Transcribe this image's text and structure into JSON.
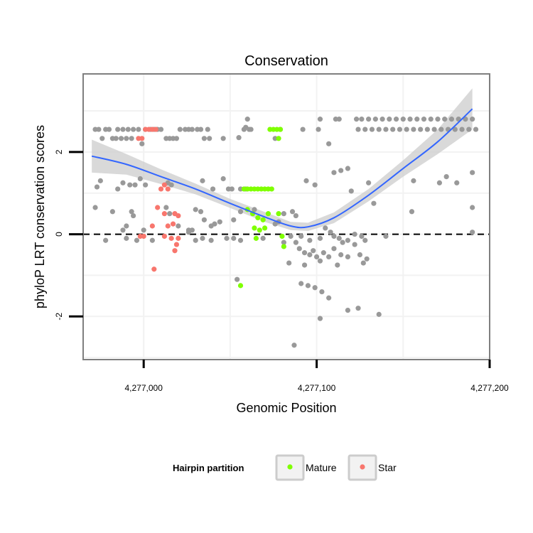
{
  "chart_data": {
    "type": "scatter",
    "title": "Conservation",
    "xlabel": "Genomic Position",
    "ylabel": "phyloP LRT conservation scores",
    "xlim": [
      4276965,
      4277200
    ],
    "ylim": [
      -3.05,
      3.9
    ],
    "x_ticks": [
      4277000,
      4277100,
      4277200
    ],
    "x_tick_labels": [
      "4,277,000",
      "4,277,100",
      "4,277,200"
    ],
    "y_ticks": [
      -2,
      0,
      2
    ],
    "y_tick_labels": [
      "-2",
      "0",
      "2"
    ],
    "grid": true,
    "reference_line": {
      "y": 0,
      "style": "dashed"
    },
    "legend": {
      "title": "Hairpin partition",
      "position": "bottom",
      "entries": [
        {
          "label": "Mature",
          "color": "#7FFF00"
        },
        {
          "label": "Star",
          "color": "#F8766D"
        }
      ]
    },
    "colors": {
      "other": "#999999",
      "mature": "#7FFF00",
      "star": "#F8766D",
      "smooth": "#3366FF",
      "band": "#CCCCCC"
    },
    "series": [
      {
        "group": "other",
        "points": [
          [
            4276978,
            2.55
          ],
          [
            4276980,
            2.55
          ],
          [
            4276982,
            2.33
          ],
          [
            4276984,
            2.33
          ],
          [
            4276985,
            2.55
          ],
          [
            4276987,
            2.33
          ],
          [
            4276988,
            2.55
          ],
          [
            4276990,
            2.33
          ],
          [
            4276991,
            2.55
          ],
          [
            4276993,
            2.33
          ],
          [
            4276994,
            2.55
          ],
          [
            4276997,
            2.55
          ],
          [
            4277001,
            2.55
          ],
          [
            4277004,
            2.55
          ],
          [
            4277006,
            2.55
          ],
          [
            4277008,
            2.55
          ],
          [
            4277010,
            2.55
          ],
          [
            4277013,
            2.33
          ],
          [
            4277015,
            2.33
          ],
          [
            4277017,
            2.33
          ],
          [
            4277019,
            2.33
          ],
          [
            4277021,
            2.55
          ],
          [
            4277024,
            2.55
          ],
          [
            4277026,
            2.55
          ],
          [
            4277028,
            2.55
          ],
          [
            4277031,
            2.55
          ],
          [
            4277033,
            2.55
          ],
          [
            4277035,
            2.33
          ],
          [
            4277037,
            2.55
          ],
          [
            4277046,
            2.33
          ],
          [
            4277058,
            2.55
          ],
          [
            4277061,
            2.55
          ],
          [
            4277076,
            2.33
          ],
          [
            4277092,
            2.55
          ],
          [
            4277101,
            2.55
          ],
          [
            4277102,
            2.8
          ],
          [
            4277111,
            2.8
          ],
          [
            4277113,
            2.8
          ],
          [
            4277123,
            2.8
          ],
          [
            4277124,
            2.55
          ],
          [
            4277126,
            2.8
          ],
          [
            4277128,
            2.55
          ],
          [
            4277130,
            2.8
          ],
          [
            4277132,
            2.55
          ],
          [
            4277134,
            2.8
          ],
          [
            4277136,
            2.55
          ],
          [
            4277138,
            2.8
          ],
          [
            4277140,
            2.55
          ],
          [
            4277142,
            2.8
          ],
          [
            4277144,
            2.55
          ],
          [
            4277146,
            2.8
          ],
          [
            4277148,
            2.55
          ],
          [
            4277150,
            2.8
          ],
          [
            4277152,
            2.55
          ],
          [
            4277154,
            2.8
          ],
          [
            4277156,
            2.55
          ],
          [
            4277158,
            2.8
          ],
          [
            4277160,
            2.55
          ],
          [
            4277162,
            2.8
          ],
          [
            4277164,
            2.55
          ],
          [
            4277166,
            2.8
          ],
          [
            4277168,
            2.55
          ],
          [
            4277170,
            2.8
          ],
          [
            4277172,
            2.55
          ],
          [
            4277174,
            2.8
          ],
          [
            4277176,
            2.55
          ],
          [
            4277178,
            2.8
          ],
          [
            4277180,
            2.55
          ],
          [
            4277182,
            2.8
          ],
          [
            4277184,
            2.55
          ],
          [
            4277186,
            2.8
          ],
          [
            4277188,
            2.55
          ],
          [
            4277190,
            2.8
          ],
          [
            4277192,
            2.55
          ],
          [
            4277060,
            2.8
          ],
          [
            4277062,
            2.55
          ],
          [
            4277079,
            2.55
          ],
          [
            4277107,
            2.2
          ],
          [
            4276972,
            2.55
          ],
          [
            4276974,
            2.55
          ],
          [
            4276976,
            2.33
          ],
          [
            4276999,
            2.2
          ],
          [
            4277038,
            2.33
          ],
          [
            4277055,
            2.35
          ],
          [
            4277059,
            2.6
          ],
          [
            4276973,
            1.15
          ],
          [
            4276975,
            1.3
          ],
          [
            4276985,
            1.1
          ],
          [
            4276988,
            1.25
          ],
          [
            4276992,
            1.2
          ],
          [
            4276995,
            1.2
          ],
          [
            4276998,
            1.35
          ],
          [
            4277001,
            1.2
          ],
          [
            4277014,
            1.25
          ],
          [
            4277016,
            1.2
          ],
          [
            4277034,
            1.3
          ],
          [
            4277040,
            1.1
          ],
          [
            4277046,
            1.35
          ],
          [
            4277049,
            1.1
          ],
          [
            4277051,
            1.1
          ],
          [
            4277056,
            1.1
          ],
          [
            4277059,
            1.1
          ],
          [
            4277094,
            1.3
          ],
          [
            4277099,
            1.2
          ],
          [
            4277110,
            1.5
          ],
          [
            4277114,
            1.55
          ],
          [
            4277118,
            1.6
          ],
          [
            4277120,
            1.05
          ],
          [
            4277130,
            1.25
          ],
          [
            4277156,
            1.3
          ],
          [
            4277171,
            1.25
          ],
          [
            4277175,
            1.4
          ],
          [
            4277181,
            1.25
          ],
          [
            4277190,
            1.5
          ],
          [
            4276972,
            0.65
          ],
          [
            4276982,
            0.55
          ],
          [
            4276988,
            0.1
          ],
          [
            4276990,
            0.2
          ],
          [
            4276993,
            0.55
          ],
          [
            4276994,
            0.45
          ],
          [
            4277000,
            0.1
          ],
          [
            4277013,
            0.65
          ],
          [
            4277015,
            0.5
          ],
          [
            4277020,
            0.2
          ],
          [
            4277026,
            0.1
          ],
          [
            4277028,
            0.1
          ],
          [
            4277030,
            0.6
          ],
          [
            4277033,
            0.55
          ],
          [
            4277035,
            0.35
          ],
          [
            4277039,
            0.2
          ],
          [
            4277041,
            0.25
          ],
          [
            4277044,
            0.3
          ],
          [
            4277052,
            0.35
          ],
          [
            4277056,
            0.55
          ],
          [
            4277064,
            0.6
          ],
          [
            4277076,
            0.25
          ],
          [
            4277078,
            0.3
          ],
          [
            4277081,
            0.5
          ],
          [
            4277086,
            0.55
          ],
          [
            4277088,
            0.45
          ],
          [
            4277105,
            0.15
          ],
          [
            4277108,
            0.05
          ],
          [
            4277133,
            0.75
          ],
          [
            4277155,
            0.55
          ],
          [
            4277190,
            0.65
          ],
          [
            4277190,
            0.05
          ],
          [
            4276978,
            -0.15
          ],
          [
            4276990,
            -0.1
          ],
          [
            4276996,
            -0.15
          ],
          [
            4277005,
            -0.15
          ],
          [
            4277026,
            0.05
          ],
          [
            4277030,
            -0.15
          ],
          [
            4277034,
            -0.1
          ],
          [
            4277039,
            -0.15
          ],
          [
            4277048,
            -0.1
          ],
          [
            4277052,
            -0.1
          ],
          [
            4277056,
            -0.15
          ],
          [
            4277069,
            -0.1
          ],
          [
            4277081,
            -0.2
          ],
          [
            4277085,
            -0.05
          ],
          [
            4277088,
            -0.2
          ],
          [
            4277091,
            -0.05
          ],
          [
            4277096,
            -0.15
          ],
          [
            4277102,
            -0.1
          ],
          [
            4277110,
            -0.05
          ],
          [
            4277113,
            -0.1
          ],
          [
            4277115,
            -0.2
          ],
          [
            4277118,
            -0.15
          ],
          [
            4277122,
            0.0
          ],
          [
            4277126,
            -0.05
          ],
          [
            4277128,
            -0.15
          ],
          [
            4277140,
            -0.05
          ],
          [
            4277084,
            -0.7
          ],
          [
            4277090,
            -0.35
          ],
          [
            4277093,
            -0.45
          ],
          [
            4277096,
            -0.5
          ],
          [
            4277098,
            -0.4
          ],
          [
            4277100,
            -0.55
          ],
          [
            4277102,
            -0.65
          ],
          [
            4277104,
            -0.45
          ],
          [
            4277107,
            -0.55
          ],
          [
            4277110,
            -0.35
          ],
          [
            4277112,
            -0.75
          ],
          [
            4277114,
            -0.5
          ],
          [
            4277118,
            -0.55
          ],
          [
            4277122,
            -0.25
          ],
          [
            4277125,
            -0.5
          ],
          [
            4277127,
            -0.7
          ],
          [
            4277129,
            -0.6
          ],
          [
            4277093,
            -0.75
          ],
          [
            4277054,
            -1.1
          ],
          [
            4277091,
            -1.2
          ],
          [
            4277095,
            -1.25
          ],
          [
            4277099,
            -1.3
          ],
          [
            4277103,
            -1.4
          ],
          [
            4277107,
            -1.55
          ],
          [
            4277118,
            -1.85
          ],
          [
            4277124,
            -1.8
          ],
          [
            4277136,
            -1.95
          ],
          [
            4277102,
            -2.05
          ],
          [
            4277087,
            -2.7
          ]
        ]
      },
      {
        "group": "mature",
        "points": [
          [
            4277058,
            1.1
          ],
          [
            4277060,
            1.1
          ],
          [
            4277062,
            1.1
          ],
          [
            4277064,
            1.1
          ],
          [
            4277066,
            1.1
          ],
          [
            4277068,
            1.1
          ],
          [
            4277070,
            1.1
          ],
          [
            4277072,
            1.1
          ],
          [
            4277074,
            1.1
          ],
          [
            4277073,
            2.55
          ],
          [
            4277075,
            2.55
          ],
          [
            4277077,
            2.55
          ],
          [
            4277079,
            2.55
          ],
          [
            4277078,
            2.33
          ],
          [
            4277060,
            0.6
          ],
          [
            4277063,
            0.5
          ],
          [
            4277066,
            0.4
          ],
          [
            4277069,
            0.35
          ],
          [
            4277072,
            0.5
          ],
          [
            4277078,
            0.5
          ],
          [
            4277064,
            0.15
          ],
          [
            4277067,
            0.1
          ],
          [
            4277070,
            0.15
          ],
          [
            4277065,
            -0.1
          ],
          [
            4277080,
            -0.05
          ],
          [
            4277081,
            -0.3
          ],
          [
            4277056,
            -1.25
          ]
        ]
      },
      {
        "group": "star",
        "points": [
          [
            4276997,
            2.33
          ],
          [
            4276999,
            2.33
          ],
          [
            4277001,
            2.55
          ],
          [
            4277003,
            2.55
          ],
          [
            4277005,
            2.55
          ],
          [
            4277007,
            2.55
          ],
          [
            4277010,
            1.1
          ],
          [
            4277012,
            1.2
          ],
          [
            4277014,
            1.1
          ],
          [
            4277008,
            0.65
          ],
          [
            4277012,
            0.5
          ],
          [
            4277018,
            0.5
          ],
          [
            4277020,
            0.45
          ],
          [
            4277005,
            0.2
          ],
          [
            4277014,
            0.2
          ],
          [
            4277017,
            0.25
          ],
          [
            4276998,
            -0.05
          ],
          [
            4277000,
            -0.05
          ],
          [
            4277012,
            -0.05
          ],
          [
            4277016,
            -0.1
          ],
          [
            4277020,
            -0.1
          ],
          [
            4277019,
            -0.25
          ],
          [
            4277018,
            -0.4
          ],
          [
            4277006,
            -0.85
          ]
        ]
      }
    ],
    "smooth": {
      "label": "loess fit",
      "x": [
        4276970,
        4276990,
        4277010,
        4277030,
        4277050,
        4277070,
        4277085,
        4277095,
        4277110,
        4277130,
        4277150,
        4277170,
        4277190
      ],
      "y": [
        1.9,
        1.7,
        1.4,
        1.1,
        0.75,
        0.42,
        0.2,
        0.18,
        0.4,
        0.95,
        1.6,
        2.25,
        3.05
      ],
      "band_low": [
        1.5,
        1.45,
        1.22,
        0.97,
        0.64,
        0.3,
        0.1,
        0.08,
        0.27,
        0.8,
        1.4,
        1.95,
        2.55
      ],
      "band_high": [
        2.3,
        1.95,
        1.58,
        1.23,
        0.86,
        0.54,
        0.3,
        0.28,
        0.53,
        1.1,
        1.8,
        2.55,
        3.55
      ]
    }
  }
}
